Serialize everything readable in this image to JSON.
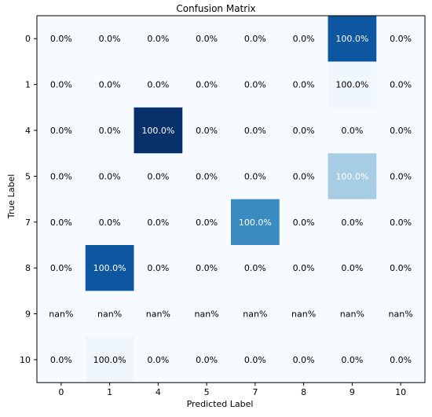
{
  "chart_data": {
    "type": "heatmap",
    "title": "Confusion Matrix",
    "xlabel": "Predicted Label",
    "ylabel": "True Label",
    "x_categories": [
      "0",
      "1",
      "4",
      "5",
      "7",
      "8",
      "9",
      "10"
    ],
    "y_categories": [
      "0",
      "1",
      "4",
      "5",
      "7",
      "8",
      "9",
      "10"
    ],
    "colormap": "Blues",
    "cells": [
      {
        "row": "0",
        "col": "9",
        "shade": 0.85
      },
      {
        "row": "1",
        "col": "9",
        "shade": 0.04
      },
      {
        "row": "4",
        "col": "4",
        "shade": 1.0
      },
      {
        "row": "5",
        "col": "9",
        "shade": 0.35
      },
      {
        "row": "7",
        "col": "7",
        "shade": 0.65
      },
      {
        "row": "8",
        "col": "1",
        "shade": 0.85
      },
      {
        "row": "10",
        "col": "1",
        "shade": 0.04
      }
    ],
    "cell_labels": [
      [
        "0.0%",
        "0.0%",
        "0.0%",
        "0.0%",
        "0.0%",
        "0.0%",
        "100.0%",
        "0.0%"
      ],
      [
        "0.0%",
        "0.0%",
        "0.0%",
        "0.0%",
        "0.0%",
        "0.0%",
        "100.0%",
        "0.0%"
      ],
      [
        "0.0%",
        "0.0%",
        "100.0%",
        "0.0%",
        "0.0%",
        "0.0%",
        "0.0%",
        "0.0%"
      ],
      [
        "0.0%",
        "0.0%",
        "0.0%",
        "0.0%",
        "0.0%",
        "0.0%",
        "100.0%",
        "0.0%"
      ],
      [
        "0.0%",
        "0.0%",
        "0.0%",
        "0.0%",
        "100.0%",
        "0.0%",
        "0.0%",
        "0.0%"
      ],
      [
        "0.0%",
        "100.0%",
        "0.0%",
        "0.0%",
        "0.0%",
        "0.0%",
        "0.0%",
        "0.0%"
      ],
      [
        "nan%",
        "nan%",
        "nan%",
        "nan%",
        "nan%",
        "nan%",
        "nan%",
        "nan%"
      ],
      [
        "0.0%",
        "100.0%",
        "0.0%",
        "0.0%",
        "0.0%",
        "0.0%",
        "0.0%",
        "0.0%"
      ]
    ],
    "colors": {
      "background_cell": "#f7fbff",
      "light_text": "#ffffff",
      "dark_text": "#000000",
      "frame": "#000000"
    }
  }
}
